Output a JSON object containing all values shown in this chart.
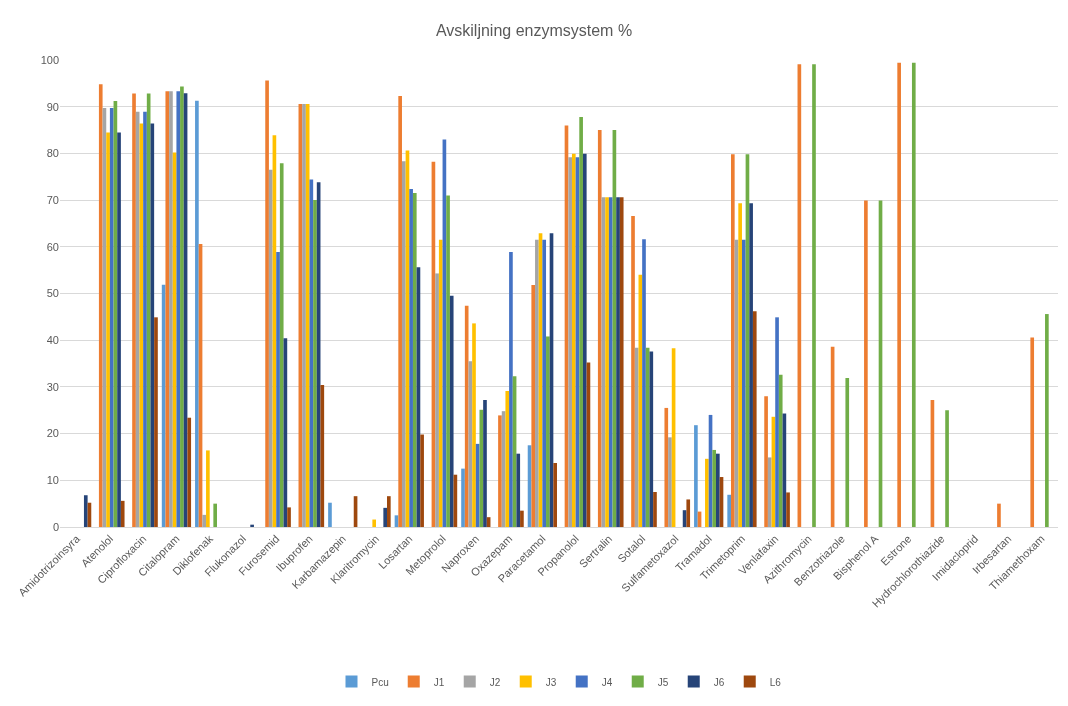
{
  "chart_data": {
    "type": "bar",
    "title": "Avskiljning enzymsystem %",
    "categories": [
      "Amidotrizoinsyra",
      "Atenolol",
      "Ciprofloxacin",
      "Citalopram",
      "Diklofenak",
      "Flukonazol",
      "Furosemid",
      "Ibuprofen",
      "Karbamazepin",
      "Klaritromycin",
      "Losartan",
      "Metoprolol",
      "Naproxen",
      "Oxazepam",
      "Paracetamol",
      "Propanolol",
      "Sertralin",
      "Sotalol",
      "Sulfametoxazol",
      "Tramadol",
      "Trimetoprim",
      "Venlafaxin",
      "Azithromycin",
      "Benzotriazole",
      "Bisphenol A",
      "Estrone",
      "Hydrochlorothiazide",
      "Imidacloprid",
      "Irbesartan",
      "Thiamethoxam"
    ],
    "series": [
      {
        "name": "Pcu",
        "color": "#5b9bd5",
        "values": [
          null,
          null,
          null,
          51.9,
          91.3,
          null,
          null,
          null,
          5.2,
          null,
          2.5,
          null,
          12.5,
          null,
          17.5,
          null,
          null,
          null,
          null,
          21.8,
          6.9,
          null,
          null,
          null,
          null,
          null,
          null,
          null,
          null,
          null
        ]
      },
      {
        "name": "J1",
        "color": "#ed7d31",
        "values": [
          null,
          94.8,
          92.8,
          93.3,
          60.6,
          null,
          95.6,
          90.6,
          null,
          null,
          92.3,
          78.2,
          47.4,
          23.9,
          51.8,
          86.0,
          85.0,
          66.6,
          25.5,
          3.3,
          79.8,
          28.0,
          99.1,
          38.6,
          69.9,
          99.4,
          27.2,
          null,
          5.0,
          40.6
        ]
      },
      {
        "name": "J2",
        "color": "#a5a5a5",
        "values": [
          null,
          89.7,
          88.9,
          93.3,
          2.6,
          null,
          76.5,
          90.6,
          null,
          null,
          78.3,
          54.3,
          35.5,
          24.8,
          61.5,
          79.2,
          70.6,
          38.4,
          19.2,
          null,
          61.5,
          14.9,
          null,
          null,
          null,
          null,
          null,
          null,
          null,
          null
        ]
      },
      {
        "name": "J3",
        "color": "#ffc000",
        "values": [
          null,
          84.5,
          86.4,
          80.2,
          16.4,
          null,
          83.9,
          90.6,
          null,
          1.6,
          80.6,
          61.5,
          43.6,
          29.1,
          62.9,
          79.9,
          70.6,
          54.0,
          38.3,
          14.6,
          69.3,
          23.6,
          null,
          null,
          null,
          null,
          null,
          null,
          null,
          null
        ]
      },
      {
        "name": "J4",
        "color": "#4472c4",
        "values": [
          null,
          89.7,
          88.9,
          93.3,
          null,
          null,
          58.9,
          74.4,
          null,
          null,
          72.4,
          83.0,
          17.8,
          58.9,
          61.5,
          79.2,
          70.6,
          61.6,
          null,
          24.0,
          61.5,
          44.9,
          null,
          null,
          null,
          null,
          null,
          null,
          null,
          null
        ]
      },
      {
        "name": "J5",
        "color": "#70ad47",
        "values": [
          null,
          91.2,
          92.8,
          94.3,
          5.0,
          null,
          77.9,
          70.0,
          null,
          null,
          71.5,
          71.0,
          25.1,
          32.3,
          40.8,
          87.8,
          85.0,
          38.4,
          null,
          16.5,
          79.8,
          32.6,
          99.1,
          31.9,
          69.9,
          99.4,
          25.0,
          null,
          null,
          45.6
        ]
      },
      {
        "name": "J6",
        "color": "#264478",
        "values": [
          6.8,
          84.5,
          86.4,
          92.9,
          null,
          0.5,
          40.4,
          73.8,
          null,
          4.1,
          55.6,
          49.5,
          27.2,
          15.7,
          62.9,
          79.9,
          70.6,
          37.6,
          3.6,
          15.7,
          69.3,
          24.3,
          null,
          null,
          null,
          null,
          null,
          null,
          null,
          null
        ]
      },
      {
        "name": "L6",
        "color": "#9e480e",
        "values": [
          5.2,
          5.6,
          44.9,
          23.4,
          null,
          null,
          4.2,
          30.4,
          6.6,
          6.6,
          19.8,
          11.2,
          2.1,
          3.5,
          13.7,
          35.2,
          70.6,
          7.5,
          5.9,
          10.7,
          46.2,
          7.4,
          null,
          null,
          null,
          null,
          null,
          null,
          null,
          null
        ]
      }
    ],
    "ylim": [
      0,
      100
    ],
    "yticks": [
      0,
      10,
      20,
      30,
      40,
      50,
      60,
      70,
      80,
      90,
      100
    ],
    "grid": "y",
    "legend": "bottom"
  }
}
